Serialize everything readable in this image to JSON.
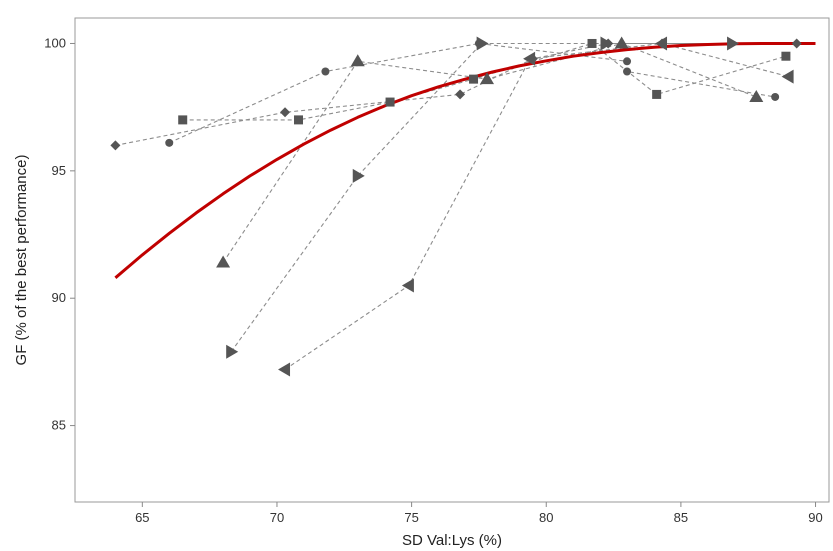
{
  "chart_data": {
    "type": "scatter",
    "xlabel": "SD Val:Lys (%)",
    "ylabel": "GF (% of the best performance)",
    "xlim": [
      62.5,
      90.5
    ],
    "ylim": [
      82,
      101
    ],
    "xticks": [
      65,
      70,
      75,
      80,
      85,
      90
    ],
    "yticks": [
      85,
      90,
      95,
      100
    ],
    "grid": false,
    "fit_color": "#c00000",
    "marker_color": "#555555",
    "series": [
      {
        "marker": "diamond",
        "points": [
          [
            64,
            96.0
          ],
          [
            70.3,
            97.3
          ],
          [
            76.8,
            98.0
          ],
          [
            79.5,
            99.4
          ],
          [
            82.3,
            100
          ],
          [
            84.3,
            100
          ],
          [
            89.3,
            100
          ]
        ]
      },
      {
        "marker": "circle",
        "points": [
          [
            66,
            96.1
          ],
          [
            71.8,
            98.9
          ],
          [
            77.5,
            100
          ],
          [
            83,
            99.3
          ],
          [
            83,
            98.9
          ],
          [
            88.5,
            97.9
          ]
        ]
      },
      {
        "marker": "square",
        "points": [
          [
            66.5,
            97.0
          ],
          [
            70.8,
            97.0
          ],
          [
            74.2,
            97.7
          ],
          [
            77.3,
            98.6
          ],
          [
            81.7,
            100
          ],
          [
            84.1,
            98.0
          ],
          [
            88.9,
            99.5
          ]
        ]
      },
      {
        "marker": "triangle-up",
        "points": [
          [
            68,
            91.4
          ],
          [
            73,
            99.3
          ],
          [
            77.8,
            98.6
          ],
          [
            82.8,
            100
          ],
          [
            87.8,
            97.9
          ]
        ]
      },
      {
        "marker": "triangle-right",
        "points": [
          [
            68.3,
            87.9
          ],
          [
            73,
            94.8
          ],
          [
            77.6,
            100
          ],
          [
            82.2,
            100
          ],
          [
            86.9,
            100
          ]
        ]
      },
      {
        "marker": "triangle-left",
        "points": [
          [
            70.3,
            87.2
          ],
          [
            74.9,
            90.5
          ],
          [
            79.4,
            99.4
          ],
          [
            84.3,
            100
          ],
          [
            89,
            98.7
          ]
        ]
      }
    ],
    "fit": {
      "x": [
        64,
        65,
        66,
        67,
        68,
        69,
        70,
        71,
        72,
        73,
        74,
        75,
        76,
        77,
        78,
        79,
        80,
        81,
        82,
        83,
        84,
        85,
        86,
        87,
        88,
        89,
        90
      ],
      "y": [
        90.8,
        91.7,
        92.55,
        93.35,
        94.1,
        94.8,
        95.45,
        96.05,
        96.6,
        97.1,
        97.55,
        97.95,
        98.3,
        98.6,
        98.88,
        99.12,
        99.32,
        99.5,
        99.64,
        99.76,
        99.85,
        99.92,
        99.96,
        99.99,
        100,
        100,
        100
      ]
    }
  }
}
